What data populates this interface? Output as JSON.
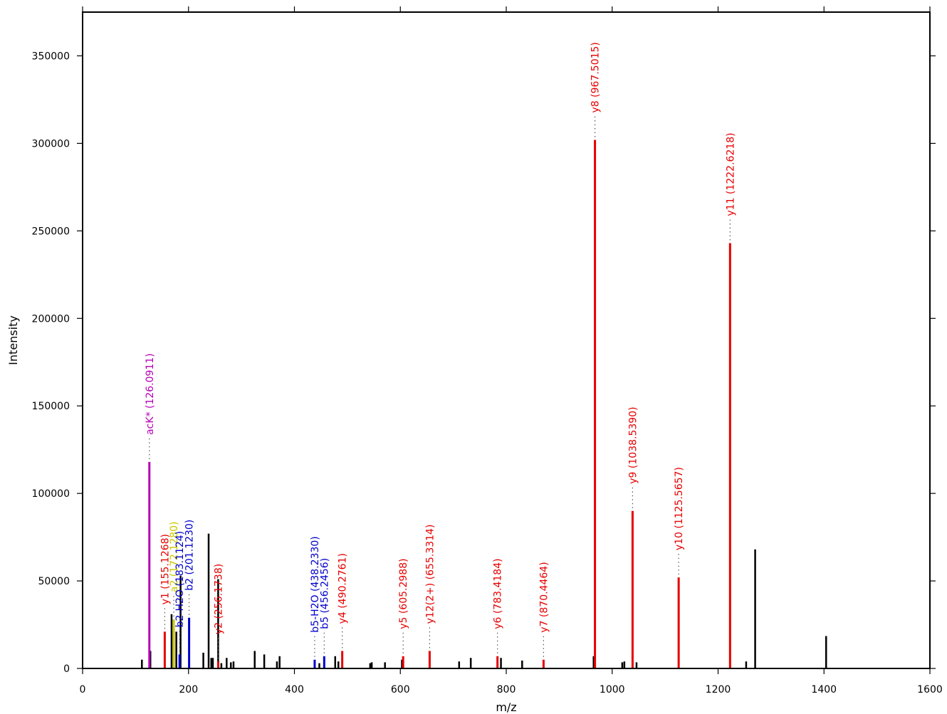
{
  "chart_data": {
    "type": "bar",
    "title": "",
    "xlabel": "m/z",
    "ylabel": "Intensity",
    "xlim": [
      0,
      1600
    ],
    "ylim": [
      0,
      375000
    ],
    "xticks": [
      0,
      200,
      400,
      600,
      800,
      1000,
      1200,
      1400,
      1600
    ],
    "yticks": [
      0,
      50000,
      100000,
      150000,
      200000,
      250000,
      300000,
      350000
    ],
    "grid": false,
    "colors": {
      "unmatched": "#000000",
      "y": "#e60000",
      "b": "#0000cc",
      "a": "#c8c800",
      "immonium": "#b400b4"
    },
    "unmatched_peaks": [
      {
        "x": 112,
        "y": 5000
      },
      {
        "x": 128,
        "y": 10000
      },
      {
        "x": 168,
        "y": 31000
      },
      {
        "x": 177,
        "y": 21000
      },
      {
        "x": 185,
        "y": 53000
      },
      {
        "x": 228,
        "y": 9000
      },
      {
        "x": 238,
        "y": 77000
      },
      {
        "x": 243,
        "y": 6000
      },
      {
        "x": 246,
        "y": 6000
      },
      {
        "x": 256,
        "y": 51000
      },
      {
        "x": 262,
        "y": 3000
      },
      {
        "x": 272,
        "y": 6000
      },
      {
        "x": 280,
        "y": 3500
      },
      {
        "x": 285,
        "y": 4000
      },
      {
        "x": 325,
        "y": 10000
      },
      {
        "x": 343,
        "y": 8000
      },
      {
        "x": 367,
        "y": 4000
      },
      {
        "x": 372,
        "y": 7000
      },
      {
        "x": 447,
        "y": 3000
      },
      {
        "x": 477,
        "y": 7000
      },
      {
        "x": 483,
        "y": 4000
      },
      {
        "x": 543,
        "y": 3000
      },
      {
        "x": 546,
        "y": 3500
      },
      {
        "x": 571,
        "y": 3500
      },
      {
        "x": 603,
        "y": 5000
      },
      {
        "x": 711,
        "y": 4000
      },
      {
        "x": 733,
        "y": 6000
      },
      {
        "x": 790,
        "y": 6000
      },
      {
        "x": 830,
        "y": 4500
      },
      {
        "x": 965,
        "y": 7000
      },
      {
        "x": 1019,
        "y": 3500
      },
      {
        "x": 1023,
        "y": 4000
      },
      {
        "x": 1046,
        "y": 3500
      },
      {
        "x": 1253,
        "y": 4000
      },
      {
        "x": 1270,
        "y": 68000
      },
      {
        "x": 1404,
        "y": 18500
      }
    ],
    "annotated_peaks": [
      {
        "x": 126.0911,
        "y": 118000,
        "label": "acK* (126.0911)",
        "series": "immonium"
      },
      {
        "x": 155.1268,
        "y": 21000,
        "label": "y1 (155.1268)",
        "series": "y"
      },
      {
        "x": 172.128,
        "y": 28000,
        "label": "a2 (172.1280)",
        "series": "a"
      },
      {
        "x": 183.1124,
        "y": 8000,
        "label": "b2-H2O (183.1124)",
        "series": "b"
      },
      {
        "x": 201.123,
        "y": 29000,
        "label": "b2 (201.1230)",
        "series": "b"
      },
      {
        "x": 256.1738,
        "y": 4000,
        "label": "y2 (256.1738)",
        "series": "y"
      },
      {
        "x": 438.233,
        "y": 5000,
        "label": "b5-H2O (438.2330)",
        "series": "b"
      },
      {
        "x": 456.2456,
        "y": 7000,
        "label": "b5 (456.2456)",
        "series": "b"
      },
      {
        "x": 490.2761,
        "y": 10000,
        "label": "y4 (490.2761)",
        "series": "y"
      },
      {
        "x": 605.2988,
        "y": 7000,
        "label": "y5 (605.2988)",
        "series": "y"
      },
      {
        "x": 655.3314,
        "y": 10000,
        "label": "y12(2+) (655.3314)",
        "series": "y"
      },
      {
        "x": 783.4184,
        "y": 7000,
        "label": "y6 (783.4184)",
        "series": "y"
      },
      {
        "x": 870.4464,
        "y": 5000,
        "label": "y7 (870.4464)",
        "series": "y"
      },
      {
        "x": 967.5015,
        "y": 302000,
        "label": "y8 (967.5015)",
        "series": "y"
      },
      {
        "x": 1038.539,
        "y": 90000,
        "label": "y9 (1038.5390)",
        "series": "y"
      },
      {
        "x": 1125.5657,
        "y": 52000,
        "label": "y10 (1125.5657)",
        "series": "y"
      },
      {
        "x": 1222.6218,
        "y": 243000,
        "label": "y11 (1222.6218)",
        "series": "y"
      }
    ]
  }
}
